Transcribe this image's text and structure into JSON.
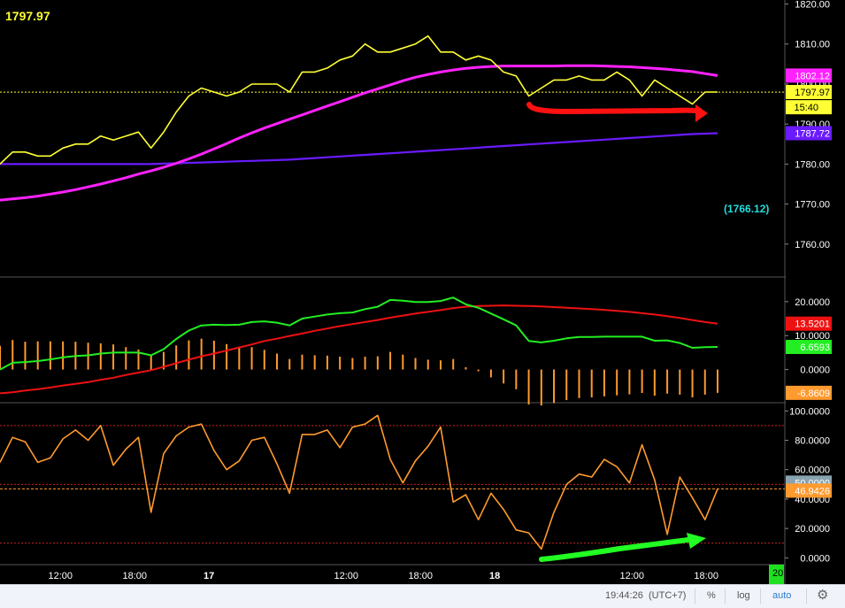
{
  "colors": {
    "background": "#000000",
    "price": "#ffff33",
    "ma_fast": "#ff22ff",
    "ma_slow": "#6a1bff",
    "macd_line": "#22ee22",
    "signal_line": "#ee1111",
    "histogram": "#ff9a2e",
    "rsi_line": "#ff9a2e",
    "rsi_band": "#cc2222",
    "red_arrow": "#ff1111",
    "green_arrow": "#22ff22",
    "axis_text": "#ffffff",
    "grid_separator": "#555555"
  },
  "header": {
    "last_price": "1797.97"
  },
  "labels": {
    "floating_value": "(1766.12)",
    "countdown": "15:40"
  },
  "x_axis_labels": [
    "12:00",
    "18:00",
    "17",
    "12:00",
    "18:00",
    "18",
    "12:00",
    "18:00"
  ],
  "status_bar": {
    "time": "19:44:26",
    "timezone": "(UTC+7)",
    "percent": "%",
    "log": "log",
    "auto": "auto",
    "green_tab": "20"
  },
  "chart_data": [
    {
      "type": "line",
      "panel": "price",
      "ylim": [
        1752,
        1821
      ],
      "yticks": [
        "1820.00",
        "1810.00",
        "1800.00",
        "1790.00",
        "1780.00",
        "1770.00",
        "1760.00"
      ],
      "x": [
        0,
        1,
        2,
        3,
        4,
        5,
        6,
        7,
        8,
        9,
        10,
        11,
        12,
        13,
        14,
        15,
        16,
        17,
        18,
        19,
        20,
        21,
        22,
        23,
        24,
        25,
        26,
        27,
        28,
        29,
        30,
        31,
        32,
        33,
        34,
        35,
        36,
        37,
        38,
        39,
        40,
        41,
        42,
        43,
        44,
        45,
        46,
        47,
        48,
        49,
        50,
        51,
        52,
        53,
        54,
        55,
        56,
        57
      ],
      "series": [
        {
          "role": "price",
          "values": [
            1780,
            1783,
            1783,
            1782,
            1782,
            1784,
            1785,
            1785,
            1787,
            1786,
            1787,
            1788,
            1784,
            1788,
            1793,
            1797,
            1799,
            1798,
            1797,
            1798,
            1800,
            1800,
            1800,
            1798,
            1803,
            1803,
            1804,
            1806,
            1807,
            1810,
            1808,
            1808,
            1809,
            1810,
            1812,
            1808,
            1808,
            1806,
            1807,
            1806,
            1803,
            1802,
            1797,
            1799,
            1801,
            1801,
            1802,
            1801,
            1801,
            1803,
            1801,
            1797,
            1801,
            1799,
            1797,
            1795,
            1798,
            1798
          ],
          "label": "1797.97"
        },
        {
          "role": "ma_fast",
          "values": [
            1771,
            1771.3,
            1771.6,
            1772,
            1772.5,
            1773,
            1773.6,
            1774.3,
            1775,
            1775.8,
            1776.6,
            1777.5,
            1778.3,
            1779.2,
            1780.2,
            1781.3,
            1782.5,
            1783.8,
            1785.1,
            1786.5,
            1787.8,
            1789,
            1790.1,
            1791.2,
            1792.3,
            1793.4,
            1794.5,
            1795.6,
            1796.7,
            1797.8,
            1798.8,
            1799.8,
            1800.8,
            1801.7,
            1802.4,
            1803,
            1803.5,
            1803.9,
            1804.2,
            1804.4,
            1804.5,
            1804.5,
            1804.5,
            1804.5,
            1804.5,
            1804.6,
            1804.6,
            1804.6,
            1804.5,
            1804.4,
            1804.3,
            1804.1,
            1803.9,
            1803.7,
            1803.4,
            1803.1,
            1802.6,
            1802.12
          ],
          "label": "1802.12"
        },
        {
          "role": "ma_slow",
          "values": [
            1780,
            1780,
            1780,
            1780,
            1780,
            1780,
            1780,
            1780,
            1780,
            1780,
            1780,
            1780,
            1780,
            1780.1,
            1780.2,
            1780.3,
            1780.4,
            1780.5,
            1780.6,
            1780.7,
            1780.8,
            1780.9,
            1781,
            1781.1,
            1781.3,
            1781.5,
            1781.7,
            1781.9,
            1782.1,
            1782.3,
            1782.5,
            1782.7,
            1782.9,
            1783.1,
            1783.3,
            1783.5,
            1783.7,
            1783.9,
            1784.1,
            1784.3,
            1784.5,
            1784.7,
            1784.9,
            1785.1,
            1785.3,
            1785.5,
            1785.7,
            1785.9,
            1786.1,
            1786.3,
            1786.5,
            1786.7,
            1786.9,
            1787.1,
            1787.3,
            1787.5,
            1787.6,
            1787.72
          ],
          "label": "1787.72"
        }
      ],
      "reference_line": 1797.97
    },
    {
      "type": "line",
      "panel": "macd",
      "ylim": [
        -9.5,
        27
      ],
      "yticks": [
        "20.0000",
        "10.0000",
        "0.0000"
      ],
      "x": [
        0,
        1,
        2,
        3,
        4,
        5,
        6,
        7,
        8,
        9,
        10,
        11,
        12,
        13,
        14,
        15,
        16,
        17,
        18,
        19,
        20,
        21,
        22,
        23,
        24,
        25,
        26,
        27,
        28,
        29,
        30,
        31,
        32,
        33,
        34,
        35,
        36,
        37,
        38,
        39,
        40,
        41,
        42,
        43,
        44,
        45,
        46,
        47,
        48,
        49,
        50,
        51,
        52,
        53,
        54,
        55,
        56,
        57
      ],
      "series": [
        {
          "role": "macd",
          "values": [
            0,
            2,
            2.2,
            2.5,
            3,
            3.6,
            4,
            4.2,
            4.7,
            5,
            5,
            5,
            4.2,
            6,
            9,
            11.5,
            13,
            13.2,
            13.1,
            13.2,
            14,
            14.2,
            13.8,
            13,
            15,
            15.6,
            16.2,
            16.6,
            16.8,
            17.8,
            18.5,
            20.5,
            20.3,
            19.9,
            19.9,
            20.2,
            21.2,
            19.2,
            18.2,
            16.5,
            14.8,
            13,
            8.4,
            8,
            8.5,
            9.2,
            9.6,
            9.6,
            9.7,
            9.7,
            9.7,
            9.7,
            8.5,
            8.6,
            7.8,
            6.4,
            6.6,
            6.6593
          ],
          "label": "6.6593"
        },
        {
          "role": "signal",
          "values": [
            -7,
            -6.7,
            -6.2,
            -5.8,
            -5.3,
            -4.7,
            -4.2,
            -3.7,
            -3,
            -2.4,
            -1.6,
            -0.9,
            -0.2,
            0.8,
            1.9,
            2.9,
            3.9,
            4.7,
            5.6,
            6.5,
            7.4,
            8.4,
            9.1,
            9.9,
            10.6,
            11.4,
            12.1,
            12.8,
            13.4,
            14,
            14.6,
            15.3,
            15.9,
            16.5,
            17,
            17.5,
            18.1,
            18.5,
            18.7,
            18.8,
            18.9,
            18.8,
            18.7,
            18.6,
            18.4,
            18.2,
            18,
            17.8,
            17.6,
            17.3,
            17,
            16.6,
            16.2,
            15.7,
            15.2,
            14.6,
            14,
            13.5201
          ],
          "label": "13.5201"
        }
      ],
      "histogram": [
        7,
        8.7,
        8.2,
        8.3,
        8.3,
        8.3,
        8.2,
        7.9,
        7.7,
        7.4,
        6.6,
        5.9,
        4.4,
        5.2,
        7.1,
        8.6,
        9.1,
        8.5,
        7.5,
        6.7,
        6.6,
        5.8,
        4.7,
        3.1,
        4.4,
        4.2,
        4.1,
        3.8,
        3.4,
        3.8,
        3.9,
        5.2,
        4.4,
        3.4,
        2.9,
        2.7,
        3.1,
        0.7,
        -0.5,
        -2.3,
        -4.1,
        -5.8,
        -10.3,
        -10.6,
        -9.9,
        -9,
        -8.4,
        -8.2,
        -7.9,
        -7.6,
        -7.3,
        -6.9,
        -7.7,
        -7.1,
        -7.4,
        -8.2,
        -7.4,
        -6.8609
      ],
      "histogram_label": "-6.8609"
    },
    {
      "type": "line",
      "panel": "rsi",
      "ylim": [
        -4,
        105
      ],
      "yticks": [
        "100.0000",
        "80.0000",
        "60.0000",
        "40.0000",
        "20.0000",
        "0.0000"
      ],
      "bands": [
        90,
        50,
        10
      ],
      "x": [
        0,
        1,
        2,
        3,
        4,
        5,
        6,
        7,
        8,
        9,
        10,
        11,
        12,
        13,
        14,
        15,
        16,
        17,
        18,
        19,
        20,
        21,
        22,
        23,
        24,
        25,
        26,
        27,
        28,
        29,
        30,
        31,
        32,
        33,
        34,
        35,
        36,
        37,
        38,
        39,
        40,
        41,
        42,
        43,
        44,
        45,
        46,
        47,
        48,
        49,
        50,
        51,
        52,
        53,
        54,
        55,
        56,
        57
      ],
      "series": [
        {
          "role": "rsi",
          "values": [
            65,
            82,
            79,
            65,
            68,
            81,
            87,
            80,
            90,
            63,
            74,
            82,
            31,
            71,
            83,
            89,
            91,
            73,
            60,
            66,
            80,
            82,
            64,
            44,
            84,
            84,
            87,
            75,
            89,
            91,
            97,
            67,
            51,
            66,
            76,
            89,
            38,
            43,
            26,
            44,
            33,
            19,
            17,
            6,
            31,
            50,
            57,
            55,
            67,
            62,
            51,
            77,
            53,
            16,
            55,
            41,
            26,
            46.9426
          ],
          "label": "46.9426"
        }
      ],
      "midline_label": "50.0000"
    }
  ]
}
